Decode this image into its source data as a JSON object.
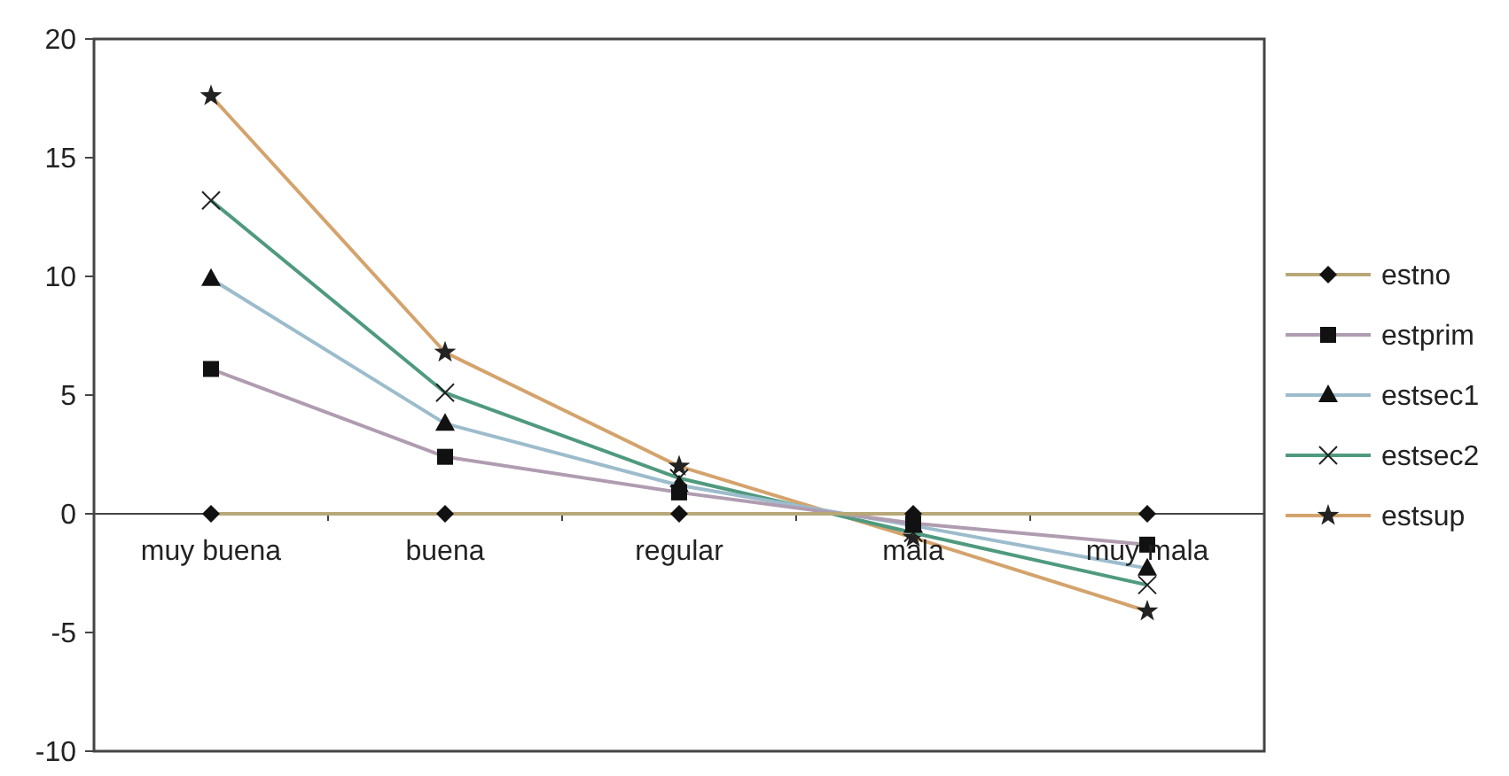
{
  "chart_data": {
    "type": "line",
    "categories": [
      "muy buena",
      "buena",
      "regular",
      "mala",
      "muy mala"
    ],
    "series": [
      {
        "name": "estno",
        "color": "#b8a878",
        "marker": "diamond",
        "values": [
          0,
          0,
          0,
          0,
          0
        ]
      },
      {
        "name": "estprim",
        "color": "#b09cb0",
        "marker": "square",
        "values": [
          6.1,
          2.4,
          0.9,
          -0.4,
          -1.3
        ]
      },
      {
        "name": "estsec1",
        "color": "#9cbccc",
        "marker": "triangle",
        "values": [
          9.9,
          3.8,
          1.2,
          -0.5,
          -2.3
        ]
      },
      {
        "name": "estsec2",
        "color": "#4f9a7e",
        "marker": "cross",
        "values": [
          13.2,
          5.1,
          1.5,
          -0.8,
          -3.0
        ]
      },
      {
        "name": "estsup",
        "color": "#d4a36c",
        "marker": "star",
        "values": [
          17.6,
          6.8,
          2.0,
          -1.0,
          -4.1
        ]
      }
    ],
    "ylim": [
      -10,
      20
    ],
    "yticks": [
      -10,
      -5,
      0,
      5,
      10,
      15,
      20
    ],
    "grid": false,
    "legend": "right",
    "line_style": "solid"
  }
}
